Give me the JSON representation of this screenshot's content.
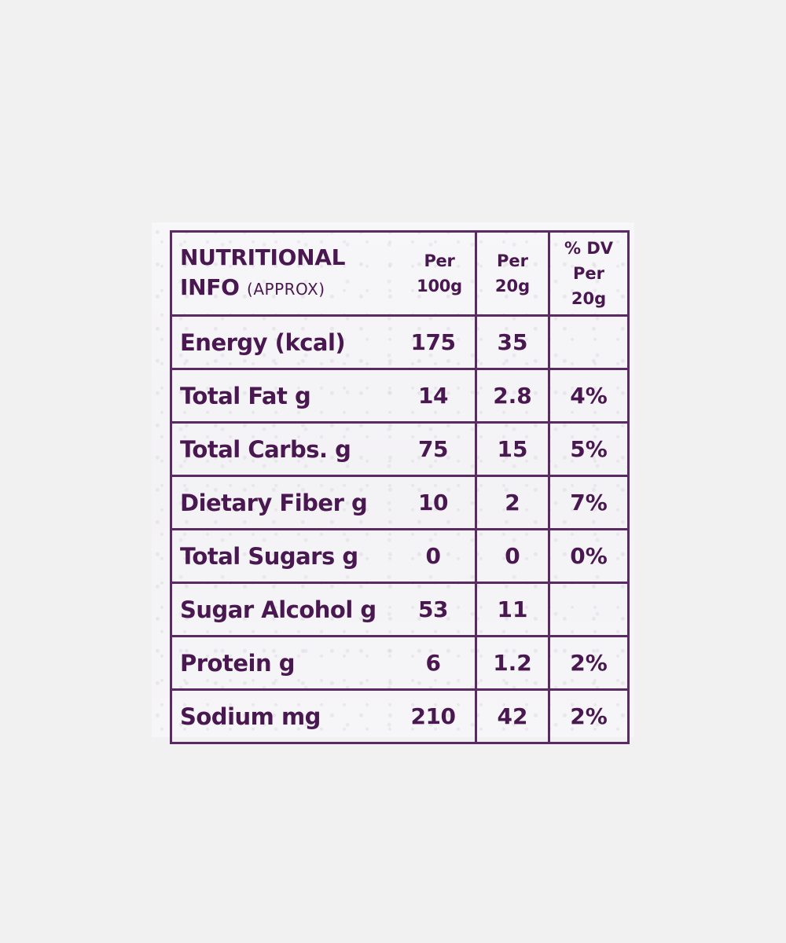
{
  "header": {
    "title_line1": "NUTRITIONAL",
    "title_line2": "INFO",
    "approx": "(APPROX)",
    "col_per100_line1": "Per",
    "col_per100_line2": "100g",
    "col_per20_line1": "Per",
    "col_per20_line2": "20g",
    "col_dv_line1": "% DV",
    "col_dv_line2": "Per 20g"
  },
  "rows": [
    {
      "name": "Energy (kcal)",
      "per100": "175",
      "per20": "35",
      "dv": ""
    },
    {
      "name": "Total Fat g",
      "per100": "14",
      "per20": "2.8",
      "dv": "4%"
    },
    {
      "name": "Total Carbs. g",
      "per100": "75",
      "per20": "15",
      "dv": "5%"
    },
    {
      "name": "Dietary Fiber g",
      "per100": "10",
      "per20": "2",
      "dv": "7%"
    },
    {
      "name": "Total Sugars g",
      "per100": "0",
      "per20": "0",
      "dv": "0%"
    },
    {
      "name": "Sugar Alcohol g",
      "per100": "53",
      "per20": "11",
      "dv": ""
    },
    {
      "name": "Protein g",
      "per100": "6",
      "per20": "1.2",
      "dv": "2%"
    },
    {
      "name": "Sodium mg",
      "per100": "210",
      "per20": "42",
      "dv": "2%"
    }
  ],
  "colors": {
    "ink": "#4a1850",
    "border": "#5a2a63",
    "paper": "#f5f4f6",
    "background": "#f1f1f1"
  }
}
